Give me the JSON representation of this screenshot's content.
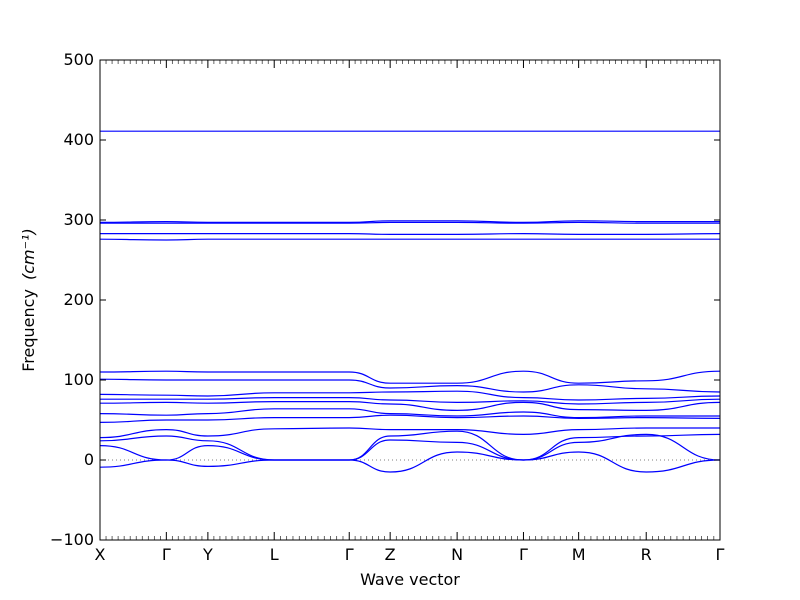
{
  "chart_data": {
    "type": "line",
    "xlabel": "Wave vector",
    "ylabel": "Frequency",
    "ylabel_unit": "(cm⁻¹)",
    "ylim": [
      -100,
      500
    ],
    "yticks": [
      -100,
      0,
      100,
      200,
      300,
      400,
      500
    ],
    "high_symmetry_points": [
      {
        "label": "X",
        "x": 0.0
      },
      {
        "label": "Γ",
        "x": 0.107
      },
      {
        "label": "Y",
        "x": 0.174
      },
      {
        "label": "L",
        "x": 0.281
      },
      {
        "label": "Γ",
        "x": 0.402
      },
      {
        "label": "Z",
        "x": 0.468
      },
      {
        "label": "N",
        "x": 0.576
      },
      {
        "label": "Γ",
        "x": 0.683
      },
      {
        "label": "M",
        "x": 0.772
      },
      {
        "label": "R",
        "x": 0.881
      },
      {
        "label": "Γ",
        "x": 1.0
      }
    ],
    "line_color": "#0000ff",
    "zero_line": true,
    "series": [
      {
        "x": [
          0,
          0.107,
          0.174,
          0.281,
          0.402,
          0.468,
          0.576,
          0.683,
          0.772,
          0.881,
          1.0
        ],
        "values": [
          411,
          411,
          411,
          411,
          411,
          411,
          411,
          411,
          411,
          411,
          411
        ]
      },
      {
        "x": [
          0,
          0.107,
          0.174,
          0.281,
          0.402,
          0.468,
          0.576,
          0.683,
          0.772,
          0.881,
          1.0
        ],
        "values": [
          297,
          298,
          297,
          297,
          297,
          299,
          299,
          297,
          299,
          298,
          298
        ]
      },
      {
        "x": [
          0,
          0.107,
          0.174,
          0.281,
          0.402,
          0.468,
          0.576,
          0.683,
          0.772,
          0.881,
          1.0
        ],
        "values": [
          296,
          296,
          296,
          296,
          296,
          297,
          297,
          296,
          297,
          296,
          296
        ]
      },
      {
        "x": [
          0,
          0.107,
          0.174,
          0.281,
          0.402,
          0.468,
          0.576,
          0.683,
          0.772,
          0.881,
          1.0
        ],
        "values": [
          283,
          283,
          283,
          283,
          283,
          282,
          282,
          283,
          282,
          282,
          283
        ]
      },
      {
        "x": [
          0,
          0.107,
          0.174,
          0.281,
          0.402,
          0.468,
          0.576,
          0.683,
          0.772,
          0.881,
          1.0
        ],
        "values": [
          276,
          275,
          276,
          276,
          276,
          276,
          276,
          276,
          276,
          276,
          276
        ]
      },
      {
        "x": [
          0,
          0.107,
          0.174,
          0.281,
          0.402,
          0.468,
          0.576,
          0.683,
          0.772,
          0.881,
          1.0
        ],
        "values": [
          110,
          111,
          110,
          110,
          110,
          96,
          96,
          111,
          96,
          99,
          111
        ]
      },
      {
        "x": [
          0,
          0.107,
          0.174,
          0.281,
          0.402,
          0.468,
          0.576,
          0.683,
          0.772,
          0.881,
          1.0
        ],
        "values": [
          101,
          100,
          100,
          100,
          100,
          90,
          93,
          85,
          94,
          89,
          85
        ]
      },
      {
        "x": [
          0,
          0.107,
          0.174,
          0.281,
          0.402,
          0.468,
          0.576,
          0.683,
          0.772,
          0.881,
          1.0
        ],
        "values": [
          82,
          81,
          80,
          84,
          84,
          85,
          86,
          78,
          75,
          77,
          80
        ]
      },
      {
        "x": [
          0,
          0.107,
          0.174,
          0.281,
          0.402,
          0.468,
          0.576,
          0.683,
          0.772,
          0.881,
          1.0
        ],
        "values": [
          76,
          76,
          76,
          78,
          78,
          75,
          72,
          74,
          70,
          72,
          76
        ]
      },
      {
        "x": [
          0,
          0.107,
          0.174,
          0.281,
          0.402,
          0.468,
          0.576,
          0.683,
          0.772,
          0.881,
          1.0
        ],
        "values": [
          71,
          72,
          71,
          73,
          73,
          70,
          62,
          72,
          63,
          62,
          72
        ]
      },
      {
        "x": [
          0,
          0.107,
          0.174,
          0.281,
          0.402,
          0.468,
          0.576,
          0.683,
          0.772,
          0.881,
          1.0
        ],
        "values": [
          58,
          56,
          58,
          64,
          64,
          58,
          55,
          60,
          53,
          55,
          55
        ]
      },
      {
        "x": [
          0,
          0.107,
          0.174,
          0.281,
          0.402,
          0.468,
          0.576,
          0.683,
          0.772,
          0.881,
          1.0
        ],
        "values": [
          47,
          50,
          50,
          53,
          53,
          56,
          53,
          55,
          52,
          53,
          52
        ]
      },
      {
        "x": [
          0,
          0.107,
          0.174,
          0.281,
          0.402,
          0.468,
          0.576,
          0.683,
          0.772,
          0.881,
          1.0
        ],
        "values": [
          28,
          38,
          30,
          39,
          40,
          38,
          38,
          32,
          38,
          40,
          40
        ]
      },
      {
        "x": [
          0,
          0.107,
          0.174,
          0.281,
          0.402,
          0.468,
          0.576,
          0.683,
          0.772,
          0.881,
          1.0
        ],
        "values": [
          24,
          30,
          24,
          0,
          0,
          30,
          36,
          0,
          28,
          30,
          32
        ]
      },
      {
        "x": [
          0,
          0.107,
          0.174,
          0.281,
          0.402,
          0.468,
          0.576,
          0.683,
          0.772,
          0.881,
          1.0
        ],
        "values": [
          18,
          0,
          18,
          0,
          0,
          25,
          22,
          0,
          22,
          32,
          0
        ]
      },
      {
        "x": [
          0,
          0.107,
          0.174,
          0.281,
          0.402,
          0.468,
          0.576,
          0.683,
          0.772,
          0.881,
          1.0
        ],
        "values": [
          -9,
          0,
          -8,
          0,
          0,
          -15,
          10,
          0,
          10,
          -15,
          0
        ]
      }
    ]
  }
}
